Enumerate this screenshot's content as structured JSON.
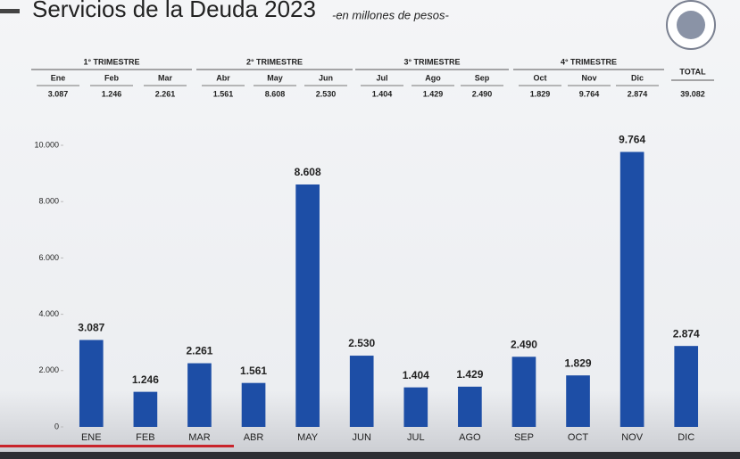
{
  "chart_data": {
    "type": "bar",
    "title": "Servicios de la Deuda 2023",
    "subtitle": "-en millones de pesos-",
    "categories": [
      "ENE",
      "FEB",
      "MAR",
      "ABR",
      "MAY",
      "JUN",
      "JUL",
      "AGO",
      "SEP",
      "OCT",
      "NOV",
      "DIC"
    ],
    "values": [
      3087,
      1246,
      2261,
      1561,
      8608,
      2530,
      1404,
      1429,
      2490,
      1829,
      9764,
      2874
    ],
    "value_labels": [
      "3.087",
      "1.246",
      "2.261",
      "1.561",
      "8.608",
      "2.530",
      "1.404",
      "1.429",
      "2.490",
      "1.829",
      "9.764",
      "2.874"
    ],
    "color": "#1d4ea6",
    "ylim": [
      0,
      10000
    ],
    "yticks": [
      0,
      {
        "value": 2000,
        "label": "2.000"
      },
      {
        "value": 4000,
        "label": "4.000"
      },
      {
        "value": 6000,
        "label": "6.000"
      },
      {
        "value": 8000,
        "label": "8.000"
      },
      {
        "value": 10000,
        "label": "10.000"
      }
    ],
    "grid": false
  },
  "table": {
    "quarters": [
      {
        "label": "1° TRIMESTRE",
        "months": [
          "Ene",
          "Feb",
          "Mar"
        ],
        "values": [
          "3.087",
          "1.246",
          "2.261"
        ]
      },
      {
        "label": "2° TRIMESTRE",
        "months": [
          "Abr",
          "May",
          "Jun"
        ],
        "values": [
          "1.561",
          "8.608",
          "2.530"
        ]
      },
      {
        "label": "3° TRIMESTRE",
        "months": [
          "Jul",
          "Ago",
          "Sep"
        ],
        "values": [
          "1.404",
          "1.429",
          "2.490"
        ]
      },
      {
        "label": "4° TRIMESTRE",
        "months": [
          "Oct",
          "Nov",
          "Dic"
        ],
        "values": [
          "1.829",
          "9.764",
          "2.874"
        ]
      }
    ],
    "total": {
      "label": "TOTAL",
      "value": "39.082"
    }
  }
}
